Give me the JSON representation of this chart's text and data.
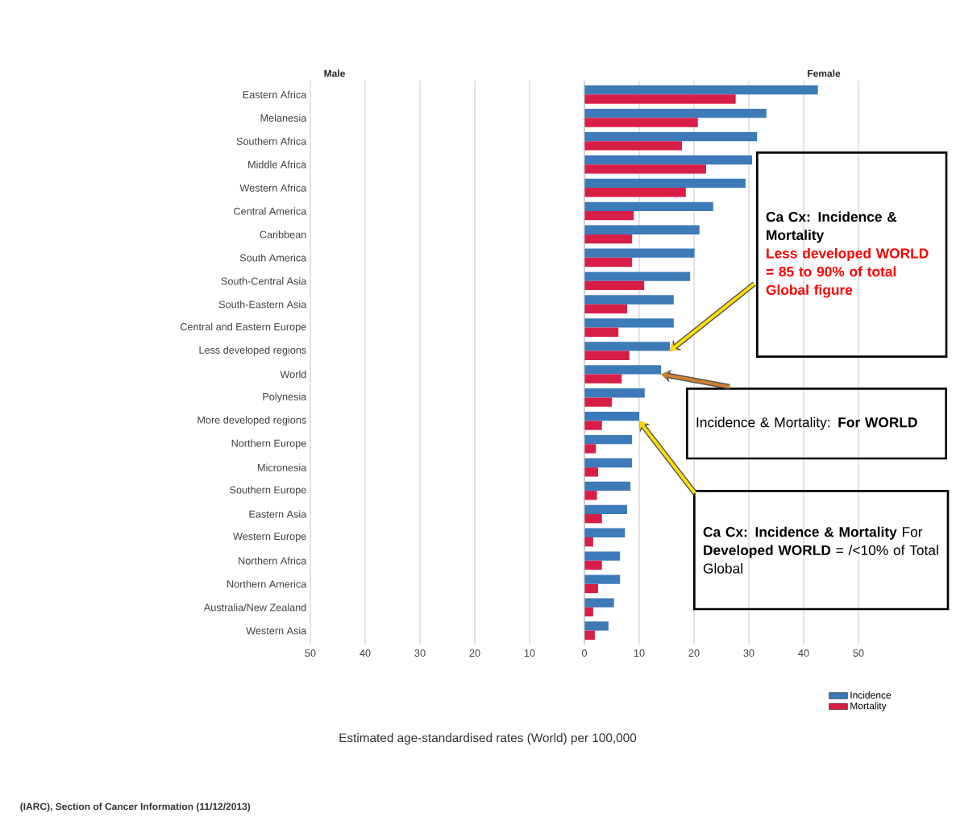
{
  "chart_data": {
    "type": "bar",
    "orientation": "horizontal",
    "categories": [
      "Eastern Africa",
      "Melanesia",
      "Southern Africa",
      "Middle Africa",
      "Western Africa",
      "Central America",
      "Caribbean",
      "South America",
      "South-Central Asia",
      "South-Eastern Asia",
      "Central and Eastern Europe",
      "Less developed regions",
      "World",
      "Polynesia",
      "More developed regions",
      "Northern Europe",
      "Micronesia",
      "Southern Europe",
      "Eastern Asia",
      "Western Europe",
      "Northern Africa",
      "Northern America",
      "Australia/New Zealand",
      "Western Asia"
    ],
    "series": [
      {
        "name": "Incidence",
        "color": "#3d7ab8",
        "values": [
          42.6,
          33.2,
          31.5,
          30.6,
          29.4,
          23.5,
          21.0,
          20.1,
          19.3,
          16.3,
          16.3,
          15.6,
          14.0,
          11.0,
          10.0,
          8.7,
          8.7,
          8.4,
          7.8,
          7.4,
          6.5,
          6.5,
          5.4,
          4.4
        ]
      },
      {
        "name": "Mortality",
        "color": "#d81e47",
        "values": [
          27.6,
          20.7,
          17.8,
          22.2,
          18.5,
          9.0,
          8.7,
          8.7,
          10.9,
          7.8,
          6.2,
          8.2,
          6.8,
          5.0,
          3.2,
          2.1,
          2.5,
          2.3,
          3.2,
          1.6,
          3.2,
          2.5,
          1.6,
          1.9
        ]
      }
    ],
    "xlim": [
      -50,
      50
    ],
    "xticks": [
      {
        "value": -50,
        "label": "50"
      },
      {
        "value": -40,
        "label": "40"
      },
      {
        "value": -30,
        "label": "30"
      },
      {
        "value": -20,
        "label": "20"
      },
      {
        "value": -10,
        "label": "10"
      },
      0,
      10,
      20,
      30,
      40,
      50
    ],
    "grid": "x",
    "legend": "bottom right",
    "annotations": [
      "Male",
      "Female",
      "Ca Cx: Incidence & Mortality",
      "Less developed WORLD = 85 to 90% of total Global figure",
      "Incidence & Mortality: **For WORLD**",
      "**Ca Cx: Incidence & Mortality** For **Developed WORLD** = /<10% of Total Global",
      "(IARC), Section of Cancer Information (11/12/2013)",
      "Estimated age-standardised rates (World) per 100,000"
    ]
  }
}
